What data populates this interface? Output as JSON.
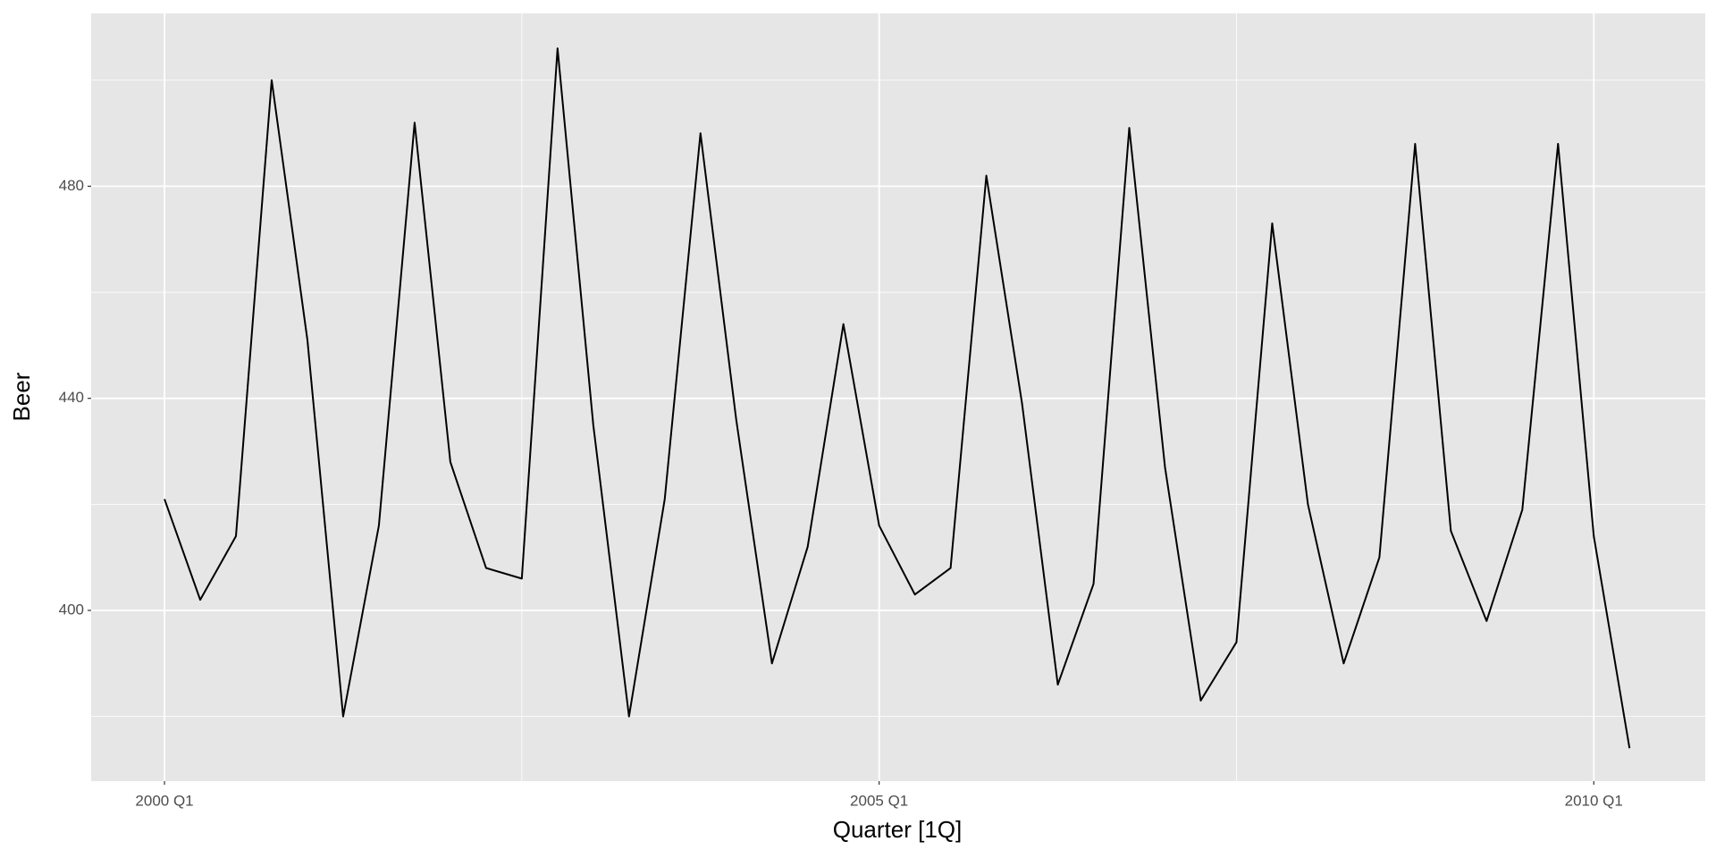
{
  "chart_data": {
    "type": "line",
    "x_label": "Quarter [1Q]",
    "y_label": "Beer",
    "x": [
      2000,
      2000.25,
      2000.5,
      2000.75,
      2001,
      2001.25,
      2001.5,
      2001.75,
      2002,
      2002.25,
      2002.5,
      2002.75,
      2003,
      2003.25,
      2003.5,
      2003.75,
      2004,
      2004.25,
      2004.5,
      2004.75,
      2005,
      2005.25,
      2005.5,
      2005.75,
      2006,
      2006.25,
      2006.5,
      2006.75,
      2007,
      2007.25,
      2007.5,
      2007.75,
      2008,
      2008.25,
      2008.5,
      2008.75,
      2009,
      2009.25,
      2009.5,
      2009.75,
      2010,
      2010.25
    ],
    "series": [
      {
        "color": "#000000",
        "values": [
          421,
          402,
          414,
          500,
          451,
          380,
          416,
          492,
          428,
          408,
          406,
          506,
          435,
          380,
          421,
          490,
          436,
          390,
          412,
          454,
          416,
          403,
          408,
          482,
          439,
          386,
          405,
          491,
          427,
          383,
          394,
          473,
          420,
          390,
          410,
          488,
          415,
          398,
          419,
          488,
          414,
          374
        ]
      }
    ],
    "xlim": [
      1999.487,
      2010.78
    ],
    "xticks": [
      {
        "value": 2000,
        "label": "2000 Q1"
      },
      {
        "value": 2005,
        "label": "2005 Q1"
      },
      {
        "value": 2010,
        "label": "2010 Q1"
      }
    ],
    "x_minor_ticks": [
      2002.5,
      2007.5
    ],
    "ylim": [
      367.8,
      512.6
    ],
    "yticks": [
      400,
      440,
      480
    ],
    "y_minor_ticks": [
      380,
      420,
      460,
      500
    ],
    "grid": true,
    "panel_color": "#e6e6e6"
  }
}
